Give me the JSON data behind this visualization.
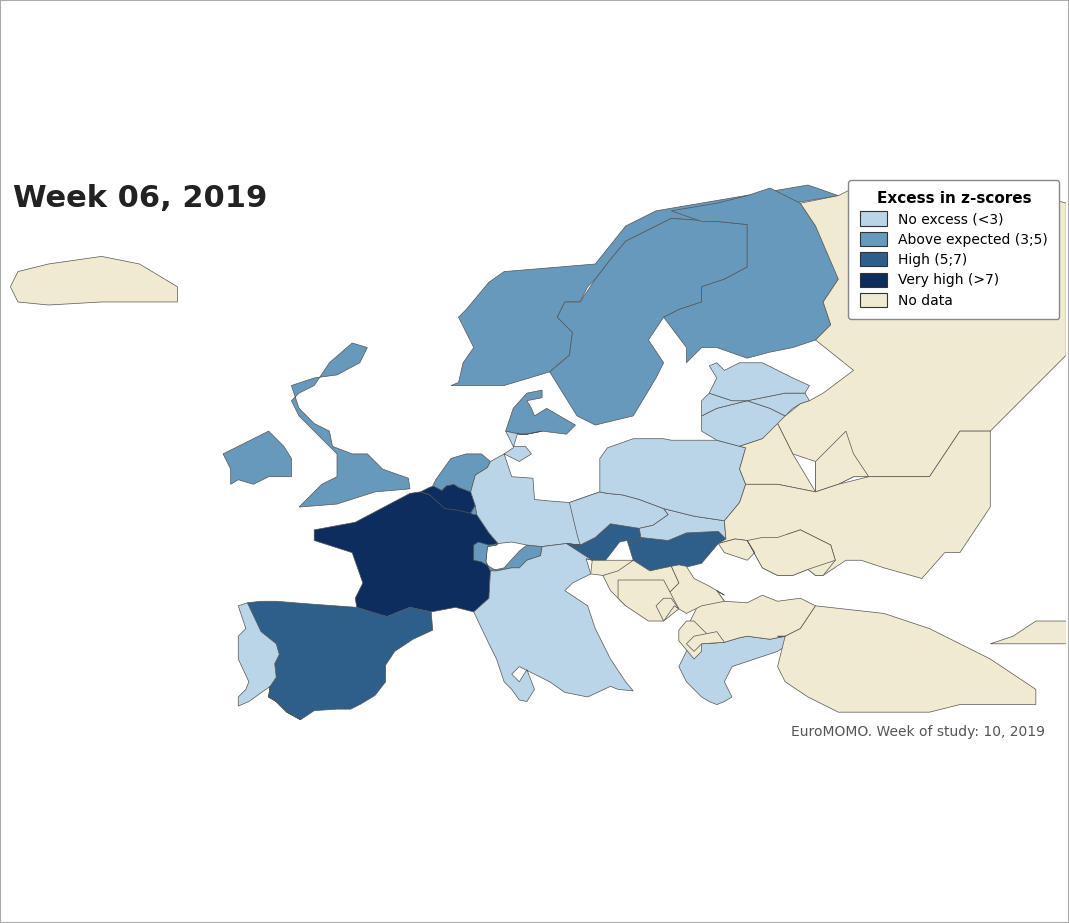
{
  "title": "Week 06, 2019",
  "footer": "EuroMOMO. Week of study: 10, 2019",
  "legend_title": "Excess in z-scores",
  "legend_labels": [
    "No excess (<3)",
    "Above expected (3;5)",
    "High (5;7)",
    "Very high (>7)",
    "No data"
  ],
  "colors": {
    "no_excess": "#bad4e8",
    "above_expected": "#6699bb",
    "high": "#2e5f8a",
    "very_high": "#0d2d5e",
    "no_data": "#f0ead0",
    "border": "#555555",
    "background": "#ffffff",
    "fig_border": "#aaaaaa"
  },
  "figsize": [
    10.69,
    9.23
  ],
  "dpi": 100,
  "map_extent": [
    -25,
    45,
    34,
    72
  ]
}
